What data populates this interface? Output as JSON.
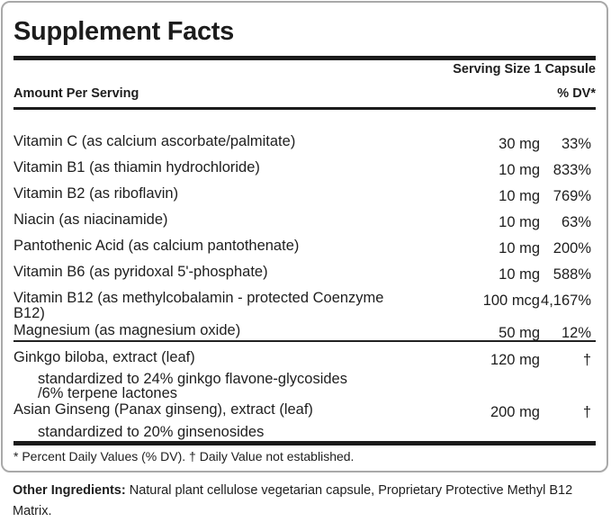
{
  "label": {
    "title": "Supplement Facts",
    "serving_size": "Serving Size 1 Capsule",
    "columns": {
      "amount_per_serving": "Amount Per Serving",
      "percent_dv": "% DV*"
    },
    "rows": [
      {
        "name": "Vitamin C (as calcium ascorbate/palmitate)",
        "amount": "30 mg",
        "dv": "33%"
      },
      {
        "name": "Vitamin B1 (as thiamin hydrochloride)",
        "amount": "10 mg",
        "dv": "833%"
      },
      {
        "name": "Vitamin B2 (as riboflavin)",
        "amount": "10 mg",
        "dv": "769%"
      },
      {
        "name": "Niacin (as niacinamide)",
        "amount": "10 mg",
        "dv": "63%"
      },
      {
        "name": "Pantothenic Acid (as calcium pantothenate)",
        "amount": "10 mg",
        "dv": "200%"
      },
      {
        "name": "Vitamin B6 (as pyridoxal 5'-phosphate)",
        "amount": "10 mg",
        "dv": "588%"
      },
      {
        "name": "Vitamin B12 (as methylcobalamin - protected Coenzyme\nB12)",
        "amount": "100 mcg",
        "dv": "4,167%"
      },
      {
        "name": "Magnesium (as magnesium oxide)",
        "amount": "50 mg",
        "dv": "12%"
      }
    ],
    "herbs": [
      {
        "name": "Ginkgo biloba, extract (leaf)",
        "amount": "120 mg",
        "dv": "†",
        "sub": "standardized to 24% ginkgo flavone-glycosides\n/6% terpene lactones"
      },
      {
        "name": "Asian Ginseng (Panax ginseng), extract (leaf)",
        "amount": "200 mg",
        "dv": "†",
        "sub": "standardized to 20% ginsenosides"
      }
    ],
    "footnote": "* Percent Daily Values (% DV). † Daily Value not established.",
    "other_ingredients": {
      "label": "Other Ingredients:",
      "text": "Natural plant cellulose vegetarian capsule, Proprietary Protective Methyl B12 Matrix."
    }
  },
  "colors": {
    "rule": "#1b1b1b",
    "border": "#a9a9a9",
    "text": "#1e1e1e"
  }
}
